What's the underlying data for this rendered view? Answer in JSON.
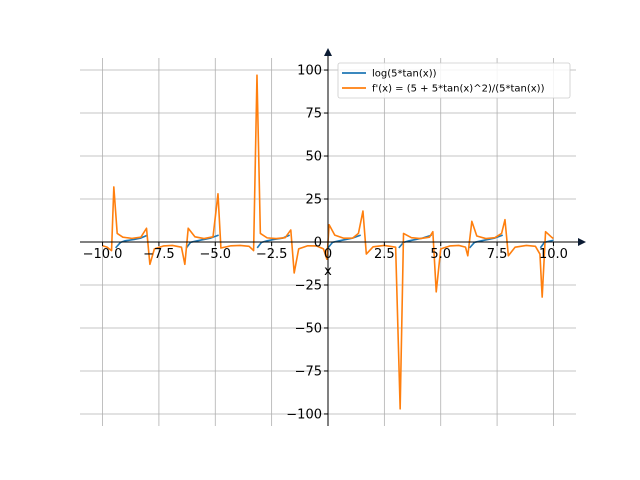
{
  "chart_data": {
    "type": "line",
    "title": "",
    "xlabel": "x",
    "ylabel": "",
    "xlim": [
      -11.0,
      11.0
    ],
    "ylim": [
      -107,
      107
    ],
    "grid": true,
    "legend": "top-right",
    "x_ticks": [
      -10.0,
      -7.5,
      -5.0,
      -2.5,
      0.0,
      2.5,
      5.0,
      7.5,
      10.0
    ],
    "x_tick_labels": [
      "−10.0",
      "−7.5",
      "−5.0",
      "−2.5",
      "0",
      "2.5",
      "5.0",
      "7.5",
      "10.0"
    ],
    "y_ticks": [
      -100,
      -75,
      -50,
      -25,
      0,
      25,
      50,
      75,
      100
    ],
    "y_tick_labels": [
      "−100",
      "−75",
      "−50",
      "−25",
      "0",
      "25",
      "50",
      "75",
      "100"
    ],
    "series": [
      {
        "name": "log(5*tan(x))",
        "color": "#1f77b4",
        "segments": [
          [
            [
              -9.42,
              -3.4
            ],
            [
              -9.2,
              -0.2
            ],
            [
              -9.0,
              0.7
            ],
            [
              -8.6,
              1.5
            ],
            [
              -8.3,
              2.3
            ],
            [
              -8.0,
              4.0
            ]
          ],
          [
            [
              -6.28,
              -3.4
            ],
            [
              -6.1,
              -0.2
            ],
            [
              -5.8,
              0.7
            ],
            [
              -5.5,
              1.5
            ],
            [
              -5.2,
              2.3
            ],
            [
              -4.85,
              4.0
            ]
          ],
          [
            [
              -3.14,
              -3.4
            ],
            [
              -2.95,
              -0.2
            ],
            [
              -2.7,
              0.7
            ],
            [
              -2.4,
              1.5
            ],
            [
              -2.0,
              2.3
            ],
            [
              -1.7,
              4.0
            ]
          ],
          [
            [
              0.0,
              -3.4
            ],
            [
              0.2,
              -0.2
            ],
            [
              0.5,
              0.7
            ],
            [
              0.8,
              1.5
            ],
            [
              1.1,
              2.3
            ],
            [
              1.45,
              4.0
            ]
          ],
          [
            [
              3.14,
              -3.4
            ],
            [
              3.35,
              -0.2
            ],
            [
              3.6,
              0.7
            ],
            [
              3.9,
              1.5
            ],
            [
              4.2,
              2.3
            ],
            [
              4.6,
              4.0
            ]
          ],
          [
            [
              6.28,
              -3.4
            ],
            [
              6.5,
              -0.2
            ],
            [
              6.8,
              0.7
            ],
            [
              7.1,
              1.5
            ],
            [
              7.4,
              2.3
            ],
            [
              7.75,
              4.0
            ]
          ],
          [
            [
              9.42,
              -3.4
            ],
            [
              9.6,
              -0.2
            ],
            [
              9.9,
              0.7
            ],
            [
              10.0,
              1.0
            ]
          ]
        ]
      },
      {
        "name": "f'(x) = (5 + 5*tan(x)^2)/(5*tan(x))",
        "color": "#ff7f0e",
        "segments": [
          [
            [
              -10.0,
              -2.2
            ],
            [
              -9.8,
              -3.0
            ],
            [
              -9.6,
              -5.0
            ],
            [
              -9.5,
              32.0
            ],
            [
              -9.35,
              5.0
            ],
            [
              -9.1,
              2.8
            ],
            [
              -8.7,
              2.1
            ],
            [
              -8.3,
              2.8
            ],
            [
              -8.05,
              8.0
            ],
            [
              -7.9,
              -13.0
            ],
            [
              -7.7,
              -4.0
            ],
            [
              -7.3,
              -2.3
            ],
            [
              -6.9,
              -2.0
            ],
            [
              -6.5,
              -3.0
            ],
            [
              -6.35,
              -13.0
            ],
            [
              -6.2,
              8.0
            ],
            [
              -5.9,
              3.0
            ],
            [
              -5.5,
              2.0
            ],
            [
              -5.1,
              3.0
            ],
            [
              -4.88,
              28.0
            ],
            [
              -4.75,
              -3.5
            ],
            [
              -4.3,
              -2.2
            ],
            [
              -3.9,
              -2.0
            ],
            [
              -3.5,
              -2.5
            ],
            [
              -3.3,
              -5.0
            ],
            [
              -3.15,
              97.0
            ],
            [
              -3.0,
              5.0
            ],
            [
              -2.7,
              2.4
            ],
            [
              -2.3,
              2.0
            ],
            [
              -1.9,
              2.5
            ],
            [
              -1.65,
              7.0
            ],
            [
              -1.5,
              -18.0
            ],
            [
              -1.3,
              -4.0
            ],
            [
              -0.9,
              -2.2
            ],
            [
              -0.5,
              -2.3
            ],
            [
              -0.2,
              -4.0
            ],
            [
              -0.05,
              -10.0
            ],
            [
              0.05,
              10.0
            ],
            [
              0.3,
              4.0
            ],
            [
              0.7,
              2.2
            ],
            [
              1.1,
              2.3
            ],
            [
              1.35,
              5.0
            ],
            [
              1.55,
              18.0
            ],
            [
              1.7,
              -7.0
            ],
            [
              2.0,
              -2.8
            ],
            [
              2.5,
              -2.0
            ],
            [
              3.0,
              -3.0
            ],
            [
              3.2,
              -97.0
            ],
            [
              3.35,
              5.0
            ],
            [
              3.7,
              2.5
            ],
            [
              4.1,
              2.0
            ],
            [
              4.5,
              2.8
            ],
            [
              4.65,
              6.0
            ],
            [
              4.8,
              -29.0
            ],
            [
              5.0,
              -4.0
            ],
            [
              5.4,
              -2.3
            ],
            [
              5.8,
              -2.0
            ],
            [
              6.1,
              -3.0
            ],
            [
              6.2,
              -8.0
            ],
            [
              6.38,
              12.0
            ],
            [
              6.6,
              3.5
            ],
            [
              7.0,
              2.0
            ],
            [
              7.4,
              2.5
            ],
            [
              7.7,
              5.0
            ],
            [
              7.85,
              13.0
            ],
            [
              8.0,
              -8.0
            ],
            [
              8.3,
              -3.0
            ],
            [
              8.8,
              -2.0
            ],
            [
              9.2,
              -2.5
            ],
            [
              9.4,
              -7.0
            ],
            [
              9.5,
              -32.0
            ],
            [
              9.65,
              6.0
            ],
            [
              9.9,
              3.0
            ],
            [
              10.0,
              2.0
            ]
          ]
        ]
      }
    ]
  }
}
